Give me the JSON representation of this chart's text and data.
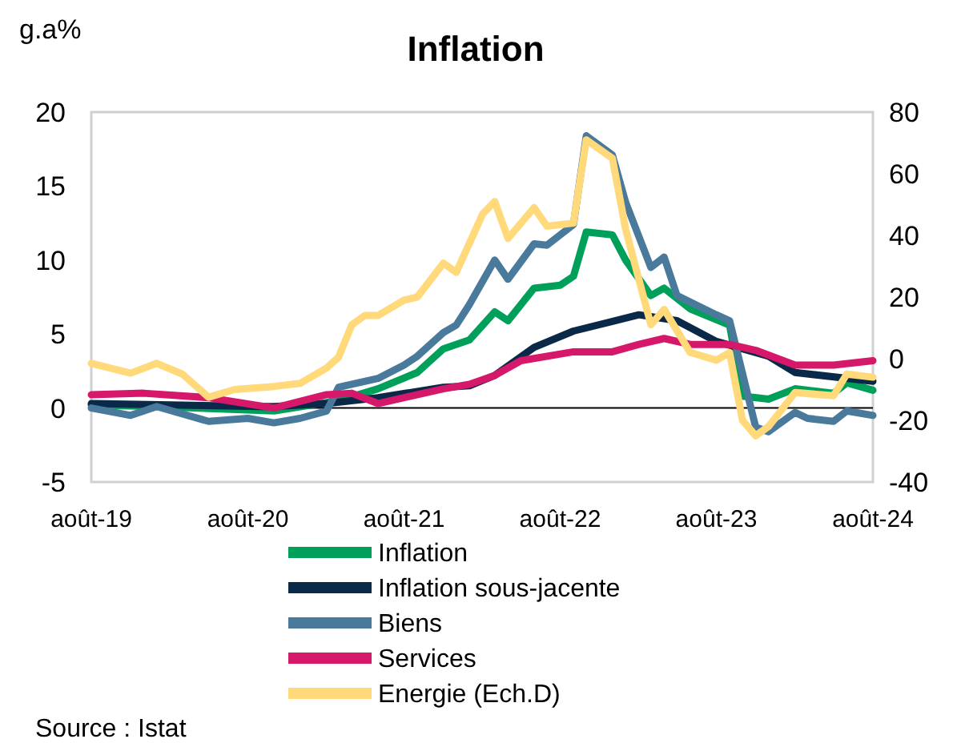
{
  "chart_data": {
    "type": "line",
    "title": "Inflation",
    "ylabel": "g.a%",
    "annotations": [
      "Source : Istat"
    ],
    "xlim": [
      "2019-08",
      "2024-08"
    ],
    "xticks": [
      {
        "value": "2019-08",
        "label": "août-19"
      },
      {
        "value": "2020-08",
        "label": "août-20"
      },
      {
        "value": "2021-08",
        "label": "août-21"
      },
      {
        "value": "2022-08",
        "label": "août-22"
      },
      {
        "value": "2023-08",
        "label": "août-23"
      },
      {
        "value": "2024-08",
        "label": "août-24"
      }
    ],
    "ylim": [
      -5,
      20
    ],
    "yticks": [
      -5,
      0,
      5,
      10,
      15,
      20
    ],
    "y2lim": [
      -40,
      80
    ],
    "y2ticks": [
      -40,
      -20,
      0,
      20,
      40,
      60,
      80
    ],
    "ref_lines": [
      {
        "axis": "y",
        "value": 0,
        "color": "#000000"
      }
    ],
    "legend": "bottom",
    "marker": "none",
    "line_style": "solid",
    "series": [
      {
        "name": "Inflation",
        "color": "#00a05a",
        "x": [
          "2019-08",
          "2020-01",
          "2020-10",
          "2021-03",
          "2021-06",
          "2021-09",
          "2021-11",
          "2022-01",
          "2022-03",
          "2022-04",
          "2022-06",
          "2022-08",
          "2022-09",
          "2022-10",
          "2022-12",
          "2023-01",
          "2023-03",
          "2023-04",
          "2023-06",
          "2023-09",
          "2023-10",
          "2023-12",
          "2024-02",
          "2024-05",
          "2024-06",
          "2024-08"
        ],
        "values": [
          0.2,
          0.1,
          -0.2,
          0.5,
          1.3,
          2.4,
          4.0,
          4.6,
          6.5,
          5.9,
          8.1,
          8.3,
          8.9,
          11.9,
          11.7,
          10,
          7.6,
          8.1,
          6.7,
          5.6,
          0.8,
          0.6,
          1.3,
          1.0,
          1.7,
          1.2
        ]
      },
      {
        "name": "Inflation sous-jacente",
        "color": "#0a2847",
        "x": [
          "2019-08",
          "2020-09",
          "2020-10",
          "2021-02",
          "2021-06",
          "2021-11",
          "2022-01",
          "2022-03",
          "2022-06",
          "2022-09",
          "2023-02",
          "2023-05",
          "2023-08",
          "2023-12",
          "2024-02",
          "2024-08"
        ],
        "values": [
          0.3,
          0.1,
          0.1,
          0.3,
          0.7,
          1.4,
          1.5,
          2.2,
          4.1,
          5.2,
          6.3,
          5.9,
          4.5,
          3.5,
          2.4,
          1.8
        ]
      },
      {
        "name": "Biens",
        "color": "#4a7a9b",
        "x": [
          "2019-08",
          "2019-11",
          "2020-01",
          "2020-03",
          "2020-05",
          "2020-08",
          "2020-10",
          "2020-12",
          "2021-02",
          "2021-03",
          "2021-06",
          "2021-08",
          "2021-09",
          "2021-11",
          "2021-12",
          "2022-01",
          "2022-03",
          "2022-04",
          "2022-06",
          "2022-07",
          "2022-09",
          "2022-10",
          "2022-12",
          "2023-01",
          "2023-03",
          "2023-04",
          "2023-05",
          "2023-08",
          "2023-09",
          "2023-11",
          "2023-12",
          "2024-02",
          "2024-03",
          "2024-05",
          "2024-06",
          "2024-08"
        ],
        "values": [
          0,
          -0.5,
          0.1,
          -0.4,
          -0.9,
          -0.7,
          -1.0,
          -0.7,
          -0.2,
          1.4,
          2.0,
          2.9,
          3.5,
          5.1,
          5.6,
          7.0,
          10,
          8.7,
          11.1,
          11,
          12.4,
          18.4,
          17.1,
          13.9,
          9.5,
          10.2,
          7.6,
          6.3,
          5.9,
          -1.3,
          -1.6,
          -0.3,
          -0.7,
          -0.9,
          -0.2,
          -0.5
        ]
      },
      {
        "name": "Services",
        "color": "#d6186a",
        "x": [
          "2019-08",
          "2019-12",
          "2020-05",
          "2020-10",
          "2021-02",
          "2021-04",
          "2021-06",
          "2021-11",
          "2022-01",
          "2022-03",
          "2022-05",
          "2022-09",
          "2022-12",
          "2023-02",
          "2023-04",
          "2023-06",
          "2023-09",
          "2023-11",
          "2024-02",
          "2024-05",
          "2024-08"
        ],
        "values": [
          0.9,
          1.0,
          0.7,
          0,
          0.9,
          1.0,
          0.3,
          1.3,
          1.6,
          2.2,
          3.2,
          3.8,
          3.8,
          4.3,
          4.7,
          4.3,
          4.3,
          3.9,
          2.9,
          2.9,
          3.2
        ]
      },
      {
        "name": "Energie (Ech.D)",
        "color": "#ffd97a",
        "axis": "y2",
        "x": [
          "2019-08",
          "2019-11",
          "2020-01",
          "2020-03",
          "2020-05",
          "2020-07",
          "2020-10",
          "2020-12",
          "2021-02",
          "2021-03",
          "2021-04",
          "2021-05",
          "2021-06",
          "2021-08",
          "2021-09",
          "2021-11",
          "2021-12",
          "2022-02",
          "2022-03",
          "2022-04",
          "2022-06",
          "2022-07",
          "2022-09",
          "2022-10",
          "2022-12",
          "2023-01",
          "2023-03",
          "2023-04",
          "2023-06",
          "2023-08",
          "2023-09",
          "2023-10",
          "2023-11",
          "2023-12",
          "2024-02",
          "2024-05",
          "2024-06",
          "2024-08"
        ],
        "values": [
          -1.5,
          -4.7,
          -1.5,
          -5,
          -12.5,
          -10,
          -9,
          -8,
          -3,
          0.5,
          11,
          14,
          14,
          19,
          20,
          31,
          28,
          47,
          51,
          39,
          49,
          43,
          44,
          71,
          65,
          42,
          11,
          16,
          2,
          -0.5,
          2,
          -20,
          -25,
          -22,
          -11,
          -12,
          -5,
          -6
        ]
      }
    ]
  }
}
